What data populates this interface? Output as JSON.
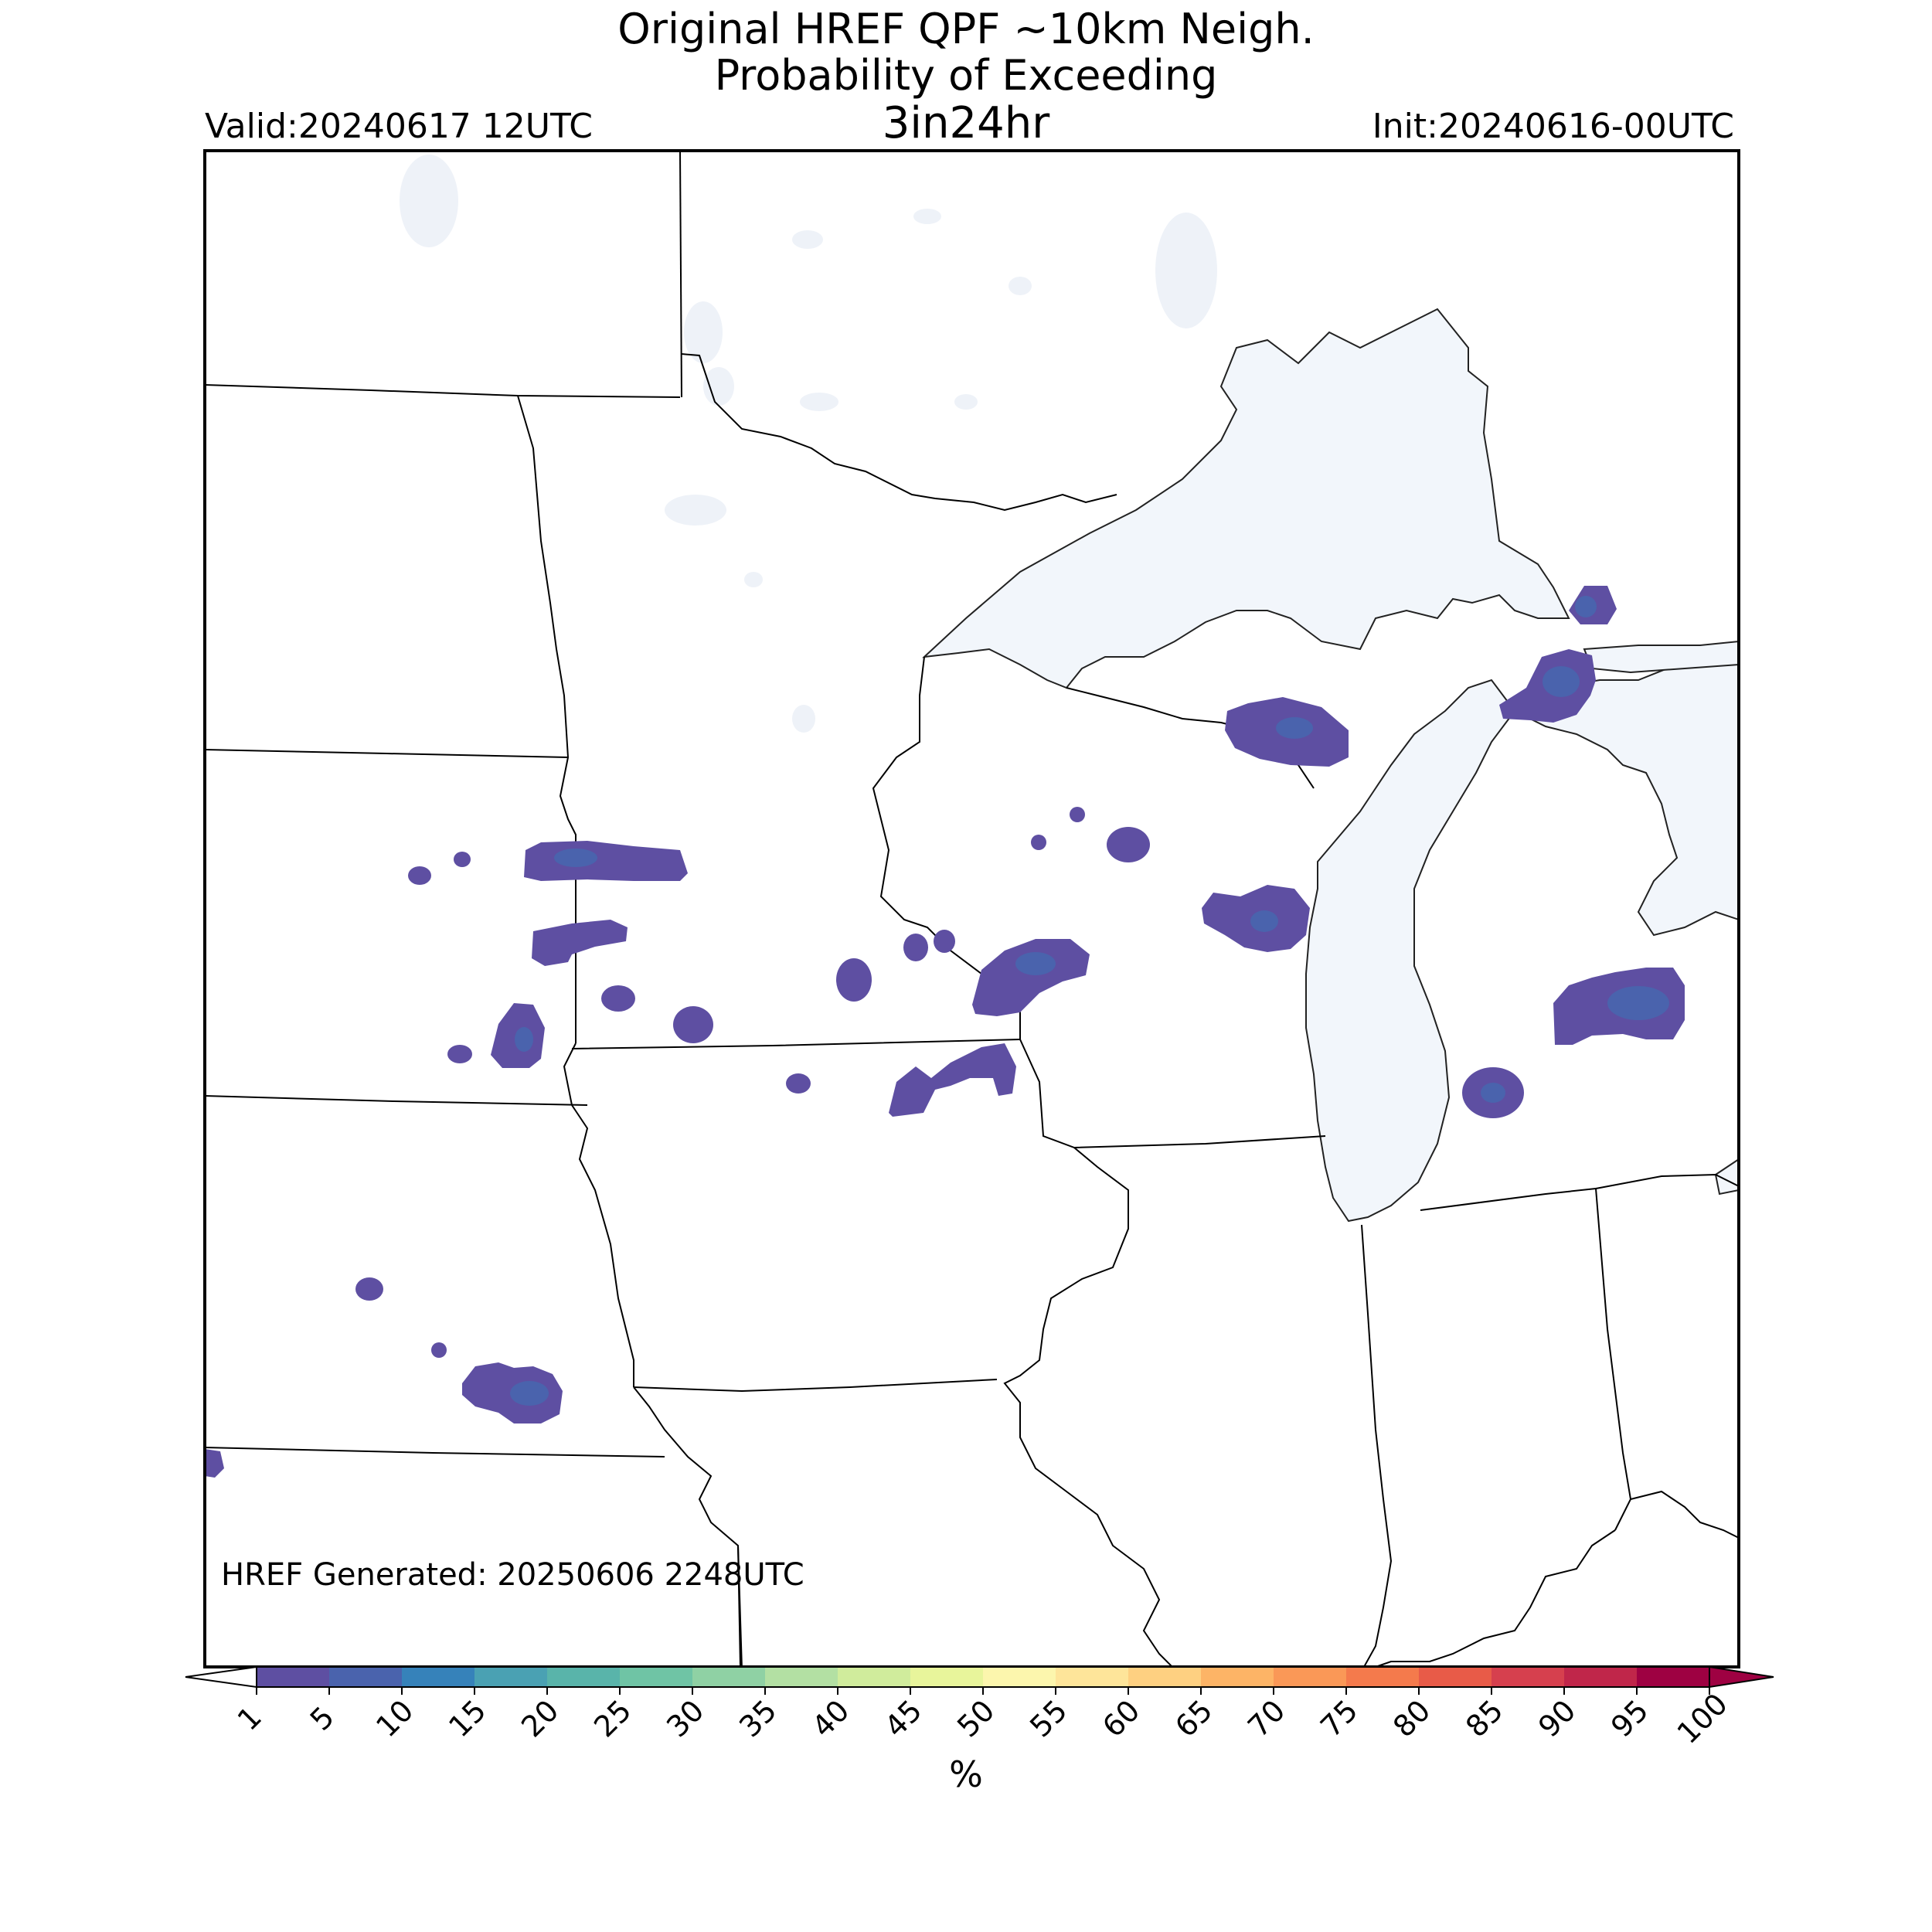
{
  "title": {
    "line1": "Original HREF QPF ~10km Neigh.",
    "line2": "Probability of Exceeding",
    "line3": "3in24hr"
  },
  "valid": "Valid:20240617 12UTC",
  "init": "Init:20240616-00UTC",
  "generated": "HREF Generated: 20250606 2248UTC",
  "colorbar": {
    "unit": "%",
    "ticks": [
      "1",
      "5",
      "10",
      "15",
      "20",
      "25",
      "30",
      "35",
      "40",
      "45",
      "50",
      "55",
      "60",
      "65",
      "70",
      "75",
      "80",
      "85",
      "90",
      "95",
      "100"
    ],
    "colors": [
      "#5e4fa2",
      "#4a63ad",
      "#3682ba",
      "#4aa1b3",
      "#59b4aa",
      "#6fc4a5",
      "#8fd1a4",
      "#b3e0a3",
      "#d0ec9c",
      "#e8f59b",
      "#fcf6ad",
      "#fee59a",
      "#fed081",
      "#fdb466",
      "#fa9857",
      "#f47a4c",
      "#e85b48",
      "#d6404e",
      "#c0264a",
      "#9e0142"
    ]
  },
  "colors": {
    "lake": "#f2f6fb",
    "border": "#000000",
    "prob_1_5": "#5e4fa2",
    "prob_5_10": "#4a63ad"
  }
}
